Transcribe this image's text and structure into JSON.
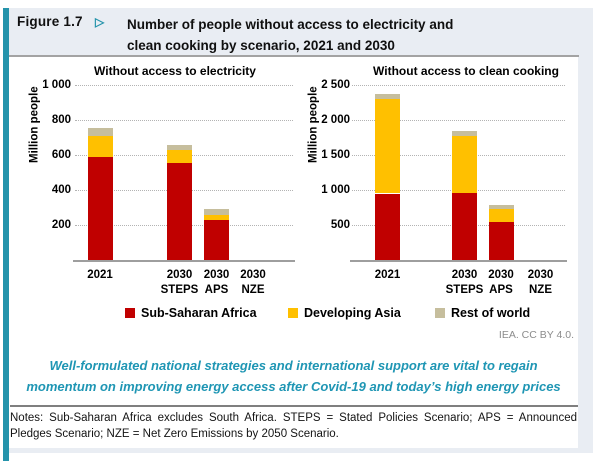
{
  "header": {
    "figure_label": "Figure 1.7",
    "arrow_icon": "▷",
    "title_lines": [
      "Number of people without access to electricity and",
      "clean cooking by scenario, 2021 and 2030"
    ]
  },
  "chart_data": [
    {
      "type": "bar",
      "stacked": true,
      "title": "Without access to electricity",
      "ylabel": "Million people",
      "ylim": [
        0,
        1000
      ],
      "grid": "horizontal-dotted",
      "legend_position": "bottom-shared",
      "y_ticks": [
        {
          "v": 200,
          "label": "200"
        },
        {
          "v": 400,
          "label": "400"
        },
        {
          "v": 600,
          "label": "600"
        },
        {
          "v": 800,
          "label": "800"
        },
        {
          "v": 1000,
          "label": "1 000"
        }
      ],
      "categories": [
        [
          "2021"
        ],
        [
          "2030",
          "STEPS"
        ],
        [
          "2030",
          "APS"
        ],
        [
          "2030",
          "NZE"
        ]
      ],
      "series": [
        {
          "name": "Sub-Saharan Africa",
          "color": "#c00000",
          "values": [
            590,
            555,
            230,
            0
          ]
        },
        {
          "name": "Developing Asia",
          "color": "#ffc000",
          "values": [
            120,
            75,
            30,
            0
          ]
        },
        {
          "name": "Rest of world",
          "color": "#c6be9d",
          "values": [
            45,
            30,
            30,
            0
          ]
        }
      ]
    },
    {
      "type": "bar",
      "stacked": true,
      "title": "Without access to clean cooking",
      "ylabel": "Million people",
      "ylim": [
        0,
        2500
      ],
      "grid": "horizontal-dotted",
      "legend_position": "bottom-shared",
      "y_ticks": [
        {
          "v": 500,
          "label": "500"
        },
        {
          "v": 1000,
          "label": "1 000"
        },
        {
          "v": 1500,
          "label": "1 500"
        },
        {
          "v": 2000,
          "label": "2 000"
        },
        {
          "v": 2500,
          "label": "2 500"
        }
      ],
      "categories": [
        [
          "2021"
        ],
        [
          "2030",
          "STEPS"
        ],
        [
          "2030",
          "APS"
        ],
        [
          "2030",
          "NZE"
        ]
      ],
      "series": [
        {
          "name": "Sub-Saharan Africa",
          "color": "#c00000",
          "values": [
            950,
            960,
            545,
            0
          ]
        },
        {
          "name": "Developing Asia",
          "color": "#ffc000",
          "values": [
            1345,
            815,
            180,
            0
          ]
        },
        {
          "name": "Rest of world",
          "color": "#c6be9d",
          "values": [
            75,
            75,
            55,
            0
          ]
        }
      ]
    }
  ],
  "legend": [
    {
      "label": "Sub-Saharan Africa",
      "color": "#c00000"
    },
    {
      "label": "Developing Asia",
      "color": "#ffc000"
    },
    {
      "label": "Rest of world",
      "color": "#c6be9d"
    }
  ],
  "footer": {
    "credit": "IEA. CC BY 4.0.",
    "subtitle_lines": [
      "Well-formulated national strategies and international support are vital to regain",
      "momentum on improving energy access after Covid-19 and today’s high energy prices"
    ],
    "notes": "Notes: Sub-Saharan Africa excludes South Africa. STEPS = Stated Policies Scenario; APS = Announced Pledges Scenario; NZE = Net Zero Emissions by 2050 Scenario."
  },
  "colors": {
    "accent_teal": "#2493ab",
    "subtitle_teal": "#1f96b4",
    "figure_box_bg": "#e9edf3",
    "sub_saharan_africa": "#c00000",
    "developing_asia": "#ffc000",
    "rest_of_world": "#c6be9d"
  }
}
